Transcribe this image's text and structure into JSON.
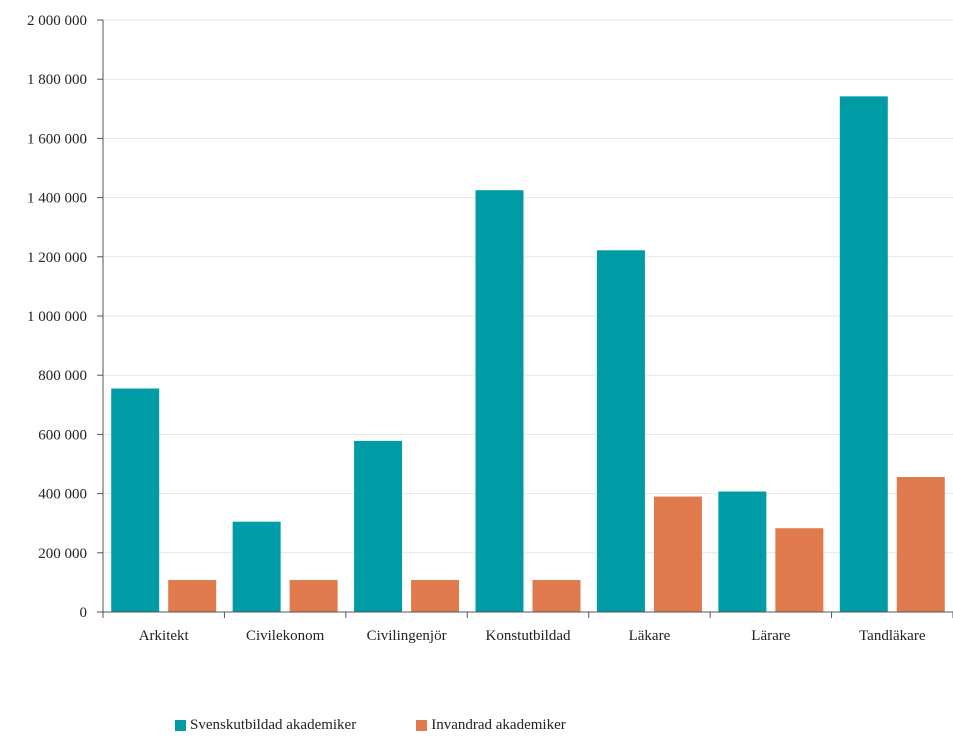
{
  "chart_data": {
    "type": "bar",
    "title": "",
    "xlabel": "",
    "ylabel": "",
    "categories": [
      "Arkitekt",
      "Civilekonom",
      "Civilingenjör",
      "Konstutbildad",
      "Läkare",
      "Lärare",
      "Tandläkare"
    ],
    "series": [
      {
        "name": "Svenskutbildad akademiker",
        "color": "#009CA6",
        "values": [
          755000,
          305000,
          578000,
          1425000,
          1222000,
          407000,
          1742000
        ]
      },
      {
        "name": "Invandrad akademiker",
        "color": "#E07A4C",
        "values": [
          108000,
          108000,
          108000,
          108000,
          390000,
          283000,
          456000
        ]
      }
    ],
    "ylim": [
      0,
      2000000
    ],
    "yticks": [
      "0",
      "200 000",
      "400 000",
      "600 000",
      "800 000",
      "1 000 000",
      "1 200 000",
      "1 400 000",
      "1 600 000",
      "1 800 000",
      "2 000 000"
    ],
    "grid": true,
    "legend_position": "bottom"
  }
}
